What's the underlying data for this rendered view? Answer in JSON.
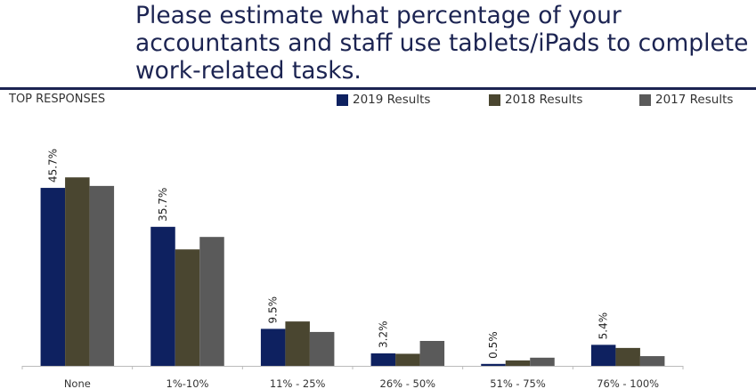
{
  "chart_data": {
    "type": "bar",
    "title": "Please estimate what percentage of your accountants and staff use tablets/iPads to complete work-related tasks.",
    "subtitle": "TOP RESPONSES",
    "categories": [
      "None",
      "1%-10%",
      "11% - 25%",
      "26% - 50%",
      "51% - 75%",
      "76% - 100%"
    ],
    "series": [
      {
        "name": "2019 Results",
        "color": "#0e2160",
        "values": [
          45.7,
          35.7,
          9.5,
          3.2,
          0.5,
          5.4
        ],
        "labels": [
          "45.7%",
          "35.7%",
          "9.5%",
          "3.2%",
          "0.5%",
          "5.4%"
        ]
      },
      {
        "name": "2018 Results",
        "color": "#4a4630",
        "values": [
          48.4,
          29.9,
          11.4,
          3.1,
          1.4,
          4.6
        ]
      },
      {
        "name": "2017 Results",
        "color": "#5a5a5a",
        "values": [
          46.2,
          33.1,
          8.7,
          6.4,
          2.1,
          2.5
        ]
      }
    ],
    "legend": "top-right",
    "grid": false,
    "ylim": [
      0,
      50
    ]
  }
}
